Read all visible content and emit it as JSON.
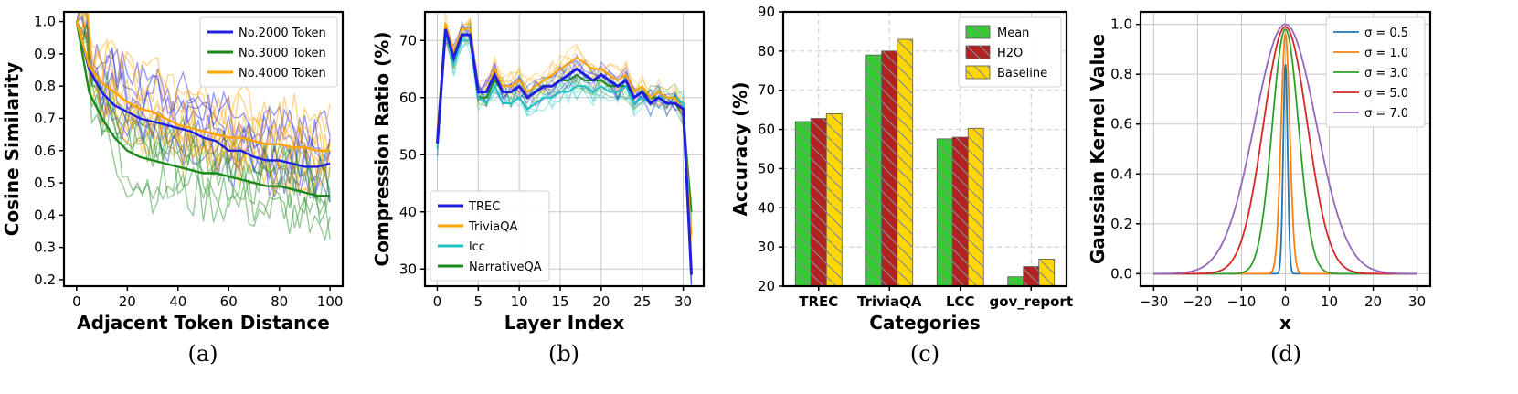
{
  "chart_data": [
    {
      "type": "line",
      "caption": "(a)",
      "xlabel": "Adjacent Token Distance",
      "ylabel": "Cosine Similarity",
      "xlim": [
        -5,
        105
      ],
      "ylim": [
        0.18,
        1.03
      ],
      "xticks": [
        0,
        20,
        40,
        60,
        80,
        100
      ],
      "yticks": [
        0.2,
        0.3,
        0.4,
        0.5,
        0.6,
        0.7,
        0.8,
        0.9,
        1.0
      ],
      "grid": false,
      "legend_position": "top-right",
      "series": [
        {
          "name": "No.2000 Token",
          "color": "#1f1fe0",
          "x": [
            0,
            5,
            10,
            15,
            20,
            25,
            30,
            35,
            40,
            45,
            50,
            55,
            60,
            65,
            70,
            75,
            80,
            85,
            90,
            95,
            100
          ],
          "y": [
            1.0,
            0.85,
            0.78,
            0.74,
            0.72,
            0.7,
            0.69,
            0.68,
            0.67,
            0.66,
            0.64,
            0.63,
            0.6,
            0.6,
            0.58,
            0.57,
            0.57,
            0.56,
            0.55,
            0.55,
            0.56
          ]
        },
        {
          "name": "No.3000 Token",
          "color": "#1a8a1a",
          "x": [
            0,
            5,
            10,
            15,
            20,
            25,
            30,
            35,
            40,
            45,
            50,
            55,
            60,
            65,
            70,
            75,
            80,
            85,
            90,
            95,
            100
          ],
          "y": [
            1.0,
            0.78,
            0.7,
            0.64,
            0.6,
            0.58,
            0.57,
            0.56,
            0.55,
            0.54,
            0.53,
            0.53,
            0.52,
            0.51,
            0.5,
            0.49,
            0.49,
            0.48,
            0.47,
            0.46,
            0.46
          ]
        },
        {
          "name": "No.4000 Token",
          "color": "#ffa500",
          "x": [
            0,
            5,
            10,
            15,
            20,
            25,
            30,
            35,
            40,
            45,
            50,
            55,
            60,
            65,
            70,
            75,
            80,
            85,
            90,
            95,
            100
          ],
          "y": [
            1.0,
            0.86,
            0.81,
            0.78,
            0.75,
            0.73,
            0.72,
            0.7,
            0.68,
            0.67,
            0.66,
            0.65,
            0.64,
            0.64,
            0.63,
            0.62,
            0.62,
            0.61,
            0.61,
            0.6,
            0.6
          ]
        }
      ]
    },
    {
      "type": "line",
      "caption": "(b)",
      "xlabel": "Layer Index",
      "ylabel": "Compression Ratio (%)",
      "xlim": [
        -1.5,
        32.5
      ],
      "ylim": [
        27,
        75
      ],
      "xticks": [
        0,
        5,
        10,
        15,
        20,
        25,
        30
      ],
      "yticks": [
        30,
        40,
        50,
        60,
        70
      ],
      "grid": true,
      "legend_position": "bottom-left",
      "series": [
        {
          "name": "TREC",
          "color": "#1f1fe0",
          "x": [
            0,
            1,
            2,
            3,
            4,
            5,
            6,
            7,
            8,
            9,
            10,
            11,
            12,
            13,
            14,
            15,
            16,
            17,
            18,
            19,
            20,
            21,
            22,
            23,
            24,
            25,
            26,
            27,
            28,
            29,
            30,
            31
          ],
          "y": [
            52,
            72,
            67,
            71,
            71,
            61,
            61,
            64,
            61,
            61,
            62,
            60,
            61,
            62,
            62,
            63,
            64,
            65,
            64,
            63,
            64,
            63,
            62,
            63,
            60,
            61,
            59,
            60,
            59,
            59,
            58,
            29
          ]
        },
        {
          "name": "TriviaQA",
          "color": "#ffa500",
          "x": [
            0,
            1,
            2,
            3,
            4,
            5,
            6,
            7,
            8,
            9,
            10,
            11,
            12,
            13,
            14,
            15,
            16,
            17,
            18,
            19,
            20,
            21,
            22,
            23,
            24,
            25,
            26,
            27,
            28,
            29,
            30,
            31
          ],
          "y": [
            54,
            73,
            68,
            72,
            72,
            61,
            61,
            65,
            62,
            62,
            63,
            61,
            62,
            63,
            64,
            65,
            66,
            67,
            66,
            65,
            65,
            64,
            63,
            64,
            61,
            62,
            60,
            61,
            60,
            60,
            57,
            36
          ]
        },
        {
          "name": "lcc",
          "color": "#20c0c0",
          "x": [
            0,
            1,
            2,
            3,
            4,
            5,
            6,
            7,
            8,
            9,
            10,
            11,
            12,
            13,
            14,
            15,
            16,
            17,
            18,
            19,
            20,
            21,
            22,
            23,
            24,
            25,
            26,
            27,
            28,
            29,
            30,
            31
          ],
          "y": [
            51,
            71,
            66,
            70,
            70,
            60,
            59,
            62,
            59,
            59,
            60,
            58,
            59,
            60,
            60,
            61,
            61,
            62,
            62,
            61,
            62,
            61,
            61,
            62,
            59,
            60,
            59,
            60,
            60,
            60,
            59,
            30
          ]
        },
        {
          "name": "NarrativeQA",
          "color": "#1a8a1a",
          "x": [
            0,
            1,
            2,
            3,
            4,
            5,
            6,
            7,
            8,
            9,
            10,
            11,
            12,
            13,
            14,
            15,
            16,
            17,
            18,
            19,
            20,
            21,
            22,
            23,
            24,
            25,
            26,
            27,
            28,
            29,
            30,
            31
          ],
          "y": [
            53,
            72,
            67,
            71,
            71,
            60,
            60,
            63,
            61,
            61,
            62,
            60,
            61,
            62,
            62,
            63,
            63,
            64,
            63,
            63,
            63,
            62,
            62,
            62,
            60,
            61,
            60,
            60,
            59,
            59,
            57,
            40
          ]
        }
      ]
    },
    {
      "type": "bar",
      "caption": "(c)",
      "xlabel": "Categories",
      "ylabel": "Accuracy (%)",
      "ylim": [
        20,
        90
      ],
      "yticks": [
        20,
        30,
        40,
        50,
        60,
        70,
        80,
        90
      ],
      "grid": true,
      "legend_position": "top-right",
      "categories": [
        "TREC",
        "TriviaQA",
        "LCC",
        "gov_report"
      ],
      "series": [
        {
          "name": "Mean",
          "color": "#33cc33",
          "values": [
            62.0,
            79.0,
            57.6,
            22.4
          ]
        },
        {
          "name": "H2O",
          "color": "#b22222",
          "values": [
            62.8,
            80.0,
            58.0,
            25.0
          ]
        },
        {
          "name": "Baseline",
          "color": "#ffd700",
          "values": [
            64.0,
            83.0,
            60.3,
            26.9
          ]
        }
      ]
    },
    {
      "type": "line",
      "caption": "(d)",
      "xlabel": "x",
      "ylabel": "Gaussian Kernel Value",
      "xlim": [
        -33,
        33
      ],
      "ylim": [
        -0.05,
        1.05
      ],
      "xticks": [
        -30,
        -20,
        -10,
        0,
        10,
        20,
        30
      ],
      "yticks": [
        0.0,
        0.2,
        0.4,
        0.6,
        0.8,
        1.0
      ],
      "grid": true,
      "legend_position": "top-right",
      "series": [
        {
          "name": "σ = 0.5",
          "sigma": 0.5,
          "peak": 0.84,
          "color": "#1f77b4"
        },
        {
          "name": "σ = 1.0",
          "sigma": 1.0,
          "peak": 0.96,
          "color": "#ff7f0e"
        },
        {
          "name": "σ = 3.0",
          "sigma": 3.0,
          "peak": 0.98,
          "color": "#2ca02c"
        },
        {
          "name": "σ = 5.0",
          "sigma": 5.0,
          "peak": 0.99,
          "color": "#d62728"
        },
        {
          "name": "σ = 7.0",
          "sigma": 7.0,
          "peak": 1.0,
          "color": "#9467bd"
        }
      ]
    }
  ]
}
